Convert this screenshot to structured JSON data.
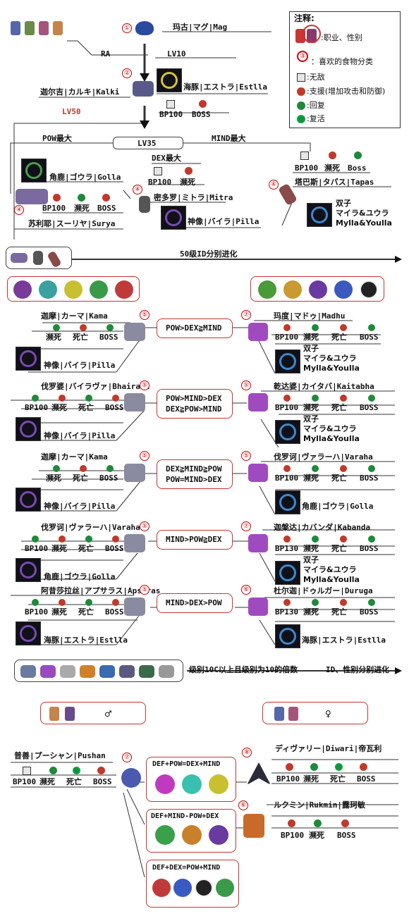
{
  "legend": {
    "title": "注释:",
    "job_gender": ":职业、性别",
    "food": "：喜欢的食物分类",
    "food_num": "③",
    "invincible": ":无敌",
    "support": ":支援(增加攻击和防御)",
    "heal": ":回复",
    "revive": ":复活"
  },
  "top": {
    "mag_num": "①",
    "mag_name": "玛古|マグ|Mag",
    "ra": "RA",
    "lv10": "LV10",
    "kalki_num": "②",
    "kalki_name": "迦尔吉|カルキ|Kalki",
    "estlla1": "海豚|エストラ|Estlla",
    "bp100_1": "BP100",
    "boss_1": "BOSS",
    "lv50": "LV50",
    "lv35": "LV35",
    "pow_max": "POW最大",
    "mind_max": "MIND最大",
    "dex_max": "DEX最大",
    "golla1": "角鹿|ゴウラ|Golla",
    "bp100_2": "BP100",
    "death_2": "濒死",
    "boss_2": "BOSS",
    "surya_num": "④",
    "surya_name": "苏利耶|スーリヤ|Surya",
    "mitra_bp": "BP100",
    "mitra_death": "濒死",
    "mitra_num": "④",
    "mitra_name": "密多罗|ミトラ|Mitra",
    "pilla1": "神像|バイラ|Pilla",
    "tapas_bp": "BP100",
    "tapas_death": "濒死",
    "tapas_boss": "Boss",
    "tapas_num": "④",
    "tapas_name": "塔巴斯|タパス|Tapas",
    "mylla1_a": "双子",
    "mylla1_b": "マイラ&ユウラ",
    "mylla1_c": "Mylla&Youlla",
    "lv50_split": "50级ID分别进化"
  },
  "rows": [
    {
      "left_num": "⑤",
      "left_name": "迦摩|カーマ|Kama",
      "left_skills": [
        "濒死",
        "死亡",
        "BOSS"
      ],
      "left_partner": "神像|バイラ|Pilla",
      "cond": [
        "POW>DEX≧MIND"
      ],
      "right_num": "⑦",
      "right_name": "玛度|マドゥ|Madhu",
      "right_skills": [
        "BP100",
        "濒死",
        "死亡",
        "BOSS"
      ],
      "right_partner_a": "双子",
      "right_partner_b": "マイラ&ユウラ",
      "right_partner_c": "Mylla&Youlla"
    },
    {
      "left_num": "⑤",
      "left_name": "伐罗婆|バイラヴァ|Bhairava",
      "left_skills": [
        "BP100",
        "濒死",
        "死亡",
        "BOSS"
      ],
      "left_partner": "神像|バイラ|Pilla",
      "cond": [
        "POW>MIND>DEX",
        "DEX≧POW>MIND"
      ],
      "right_num": "⑤",
      "right_name": "乾达婆|カイタバ|Kaitabha",
      "right_skills": [
        "BP100",
        "濒死",
        "死亡",
        "BOSS"
      ],
      "right_partner_a": "双子",
      "right_partner_b": "マイラ&ユウラ",
      "right_partner_c": "Mylla&Youlla"
    },
    {
      "left_num": "⑤",
      "left_name": "迦摩|カーマ|Kama",
      "left_skills": [
        "濒死",
        "死亡",
        "BOSS"
      ],
      "left_partner": "神像|バイラ|Pilla",
      "cond": [
        "DEX≧MIND≧POW",
        "POW=MIND>DEX"
      ],
      "right_num": "⑤",
      "right_name": "伐罗诃|ヴァラーハ|Varaha",
      "right_skills": [
        "BP100",
        "濒死",
        "死亡",
        "BOSS"
      ],
      "right_partner_a": "角鹿|ゴウラ|Golla",
      "right_partner_b": "",
      "right_partner_c": ""
    },
    {
      "left_num": "⑤",
      "left_name": "伐罗诃|ヴァラーハ|Varaha",
      "left_skills": [
        "BP100",
        "濒死",
        "死亡",
        "BOSS"
      ],
      "left_partner": "角鹿|ゴウラ|Golla",
      "cond": [
        "MIND>POW≧DEX"
      ],
      "right_num": "⑦",
      "right_name": "迦槃达|カバンダ|Kabanda",
      "right_skills": [
        "BP130",
        "濒死",
        "死亡",
        "BOSS"
      ],
      "right_partner_a": "双子",
      "right_partner_b": "マイラ&ユウラ",
      "right_partner_c": "Mylla&Youlla"
    },
    {
      "left_num": "⑤",
      "left_name": "阿昔莎拉丝|アプサラス|Apsaras",
      "left_skills": [
        "BP100",
        "濒死",
        "死亡",
        "BOSS"
      ],
      "left_partner": "海豚|エストラ|Estlla",
      "cond": [
        "MIND>DEX>POW"
      ],
      "right_num": "⑥",
      "right_name": "杜尔迦|ドゥルガー|Duruga",
      "right_skills": [
        "BP130",
        "濒死",
        "死亡",
        "BOSS"
      ],
      "right_partner_a": "海豚|エストラ|Estlla",
      "right_partner_b": "",
      "right_partner_c": ""
    }
  ],
  "bottom": {
    "lv100_text": "级别10C以上且级别为10的倍数",
    "id_gender_text": "ID、性别分别进化",
    "male_sym": "♂",
    "female_sym": "♀",
    "pushan_name": "普善|プーシャン|Pushan",
    "pushan_num": "⑦",
    "pushan_skills": [
      "BP100",
      "濒死",
      "死亡",
      "BOSS"
    ],
    "cond1": "DEF+POW=DEX+MIND",
    "cond2": "DEF+MIND-POW+DEX",
    "cond3": "DEF+DEX=POW+MIND",
    "diwari_num": "⑧",
    "diwari_name": "ディヴァリー|Diwari|帝瓦利",
    "diwari_skills": [
      "BP100",
      "濒死",
      "死亡",
      "BOSS"
    ],
    "rukmin_num": "⑥",
    "rukmin_name": "ルクミン|Rukmin|露珂敏",
    "rukmin_skills": [
      "BP100",
      "濒死",
      "BOSS"
    ]
  },
  "colors": {
    "red": "#c0392b",
    "green": "#1e8a3a",
    "line": "#333333"
  }
}
